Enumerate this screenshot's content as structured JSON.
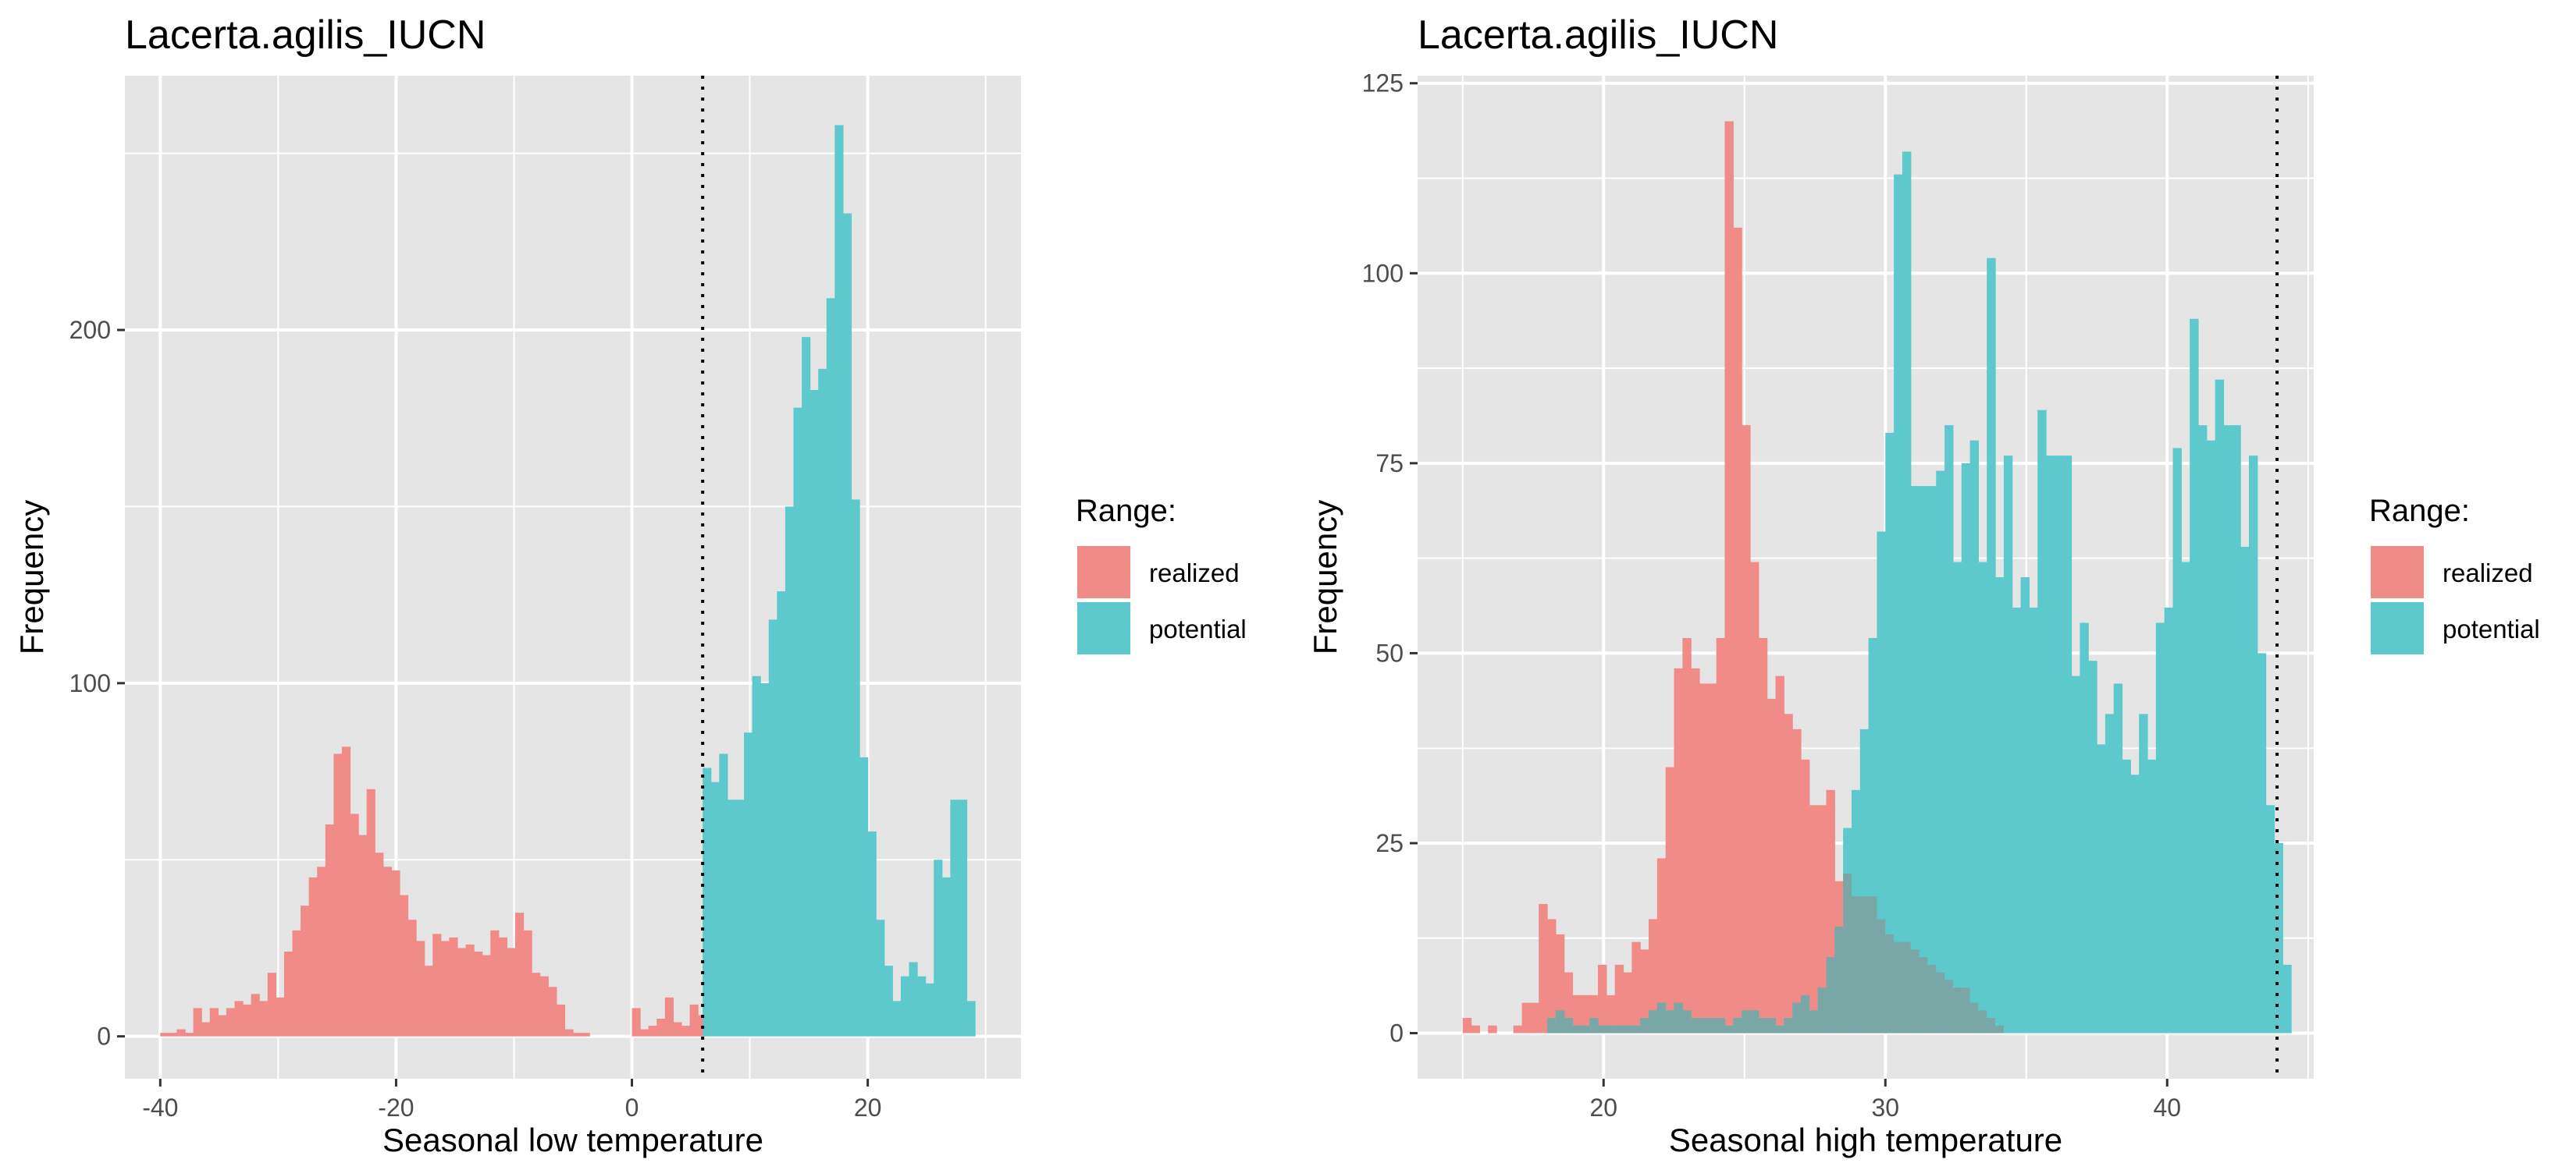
{
  "colors": {
    "panel_background": "#e5e5e5",
    "grid": "#ffffff",
    "realized": "#f08b87",
    "potential": "#5ec9cc",
    "overlap": "#7aa7a6",
    "threshold_line": "#000000"
  },
  "legend": {
    "title": "Range:",
    "items": [
      {
        "label": "realized",
        "color": "#f08b87"
      },
      {
        "label": "potential",
        "color": "#5ec9cc"
      }
    ]
  },
  "chart_data": [
    {
      "type": "histogram",
      "title": "Lacerta.agilis_IUCN",
      "xlabel": "Seasonal low temperature",
      "ylabel": "Frequency",
      "xlim": [
        -43,
        33
      ],
      "ylim": [
        -12,
        272
      ],
      "x_ticks": [
        -40,
        -20,
        0,
        20
      ],
      "x_tick_labels": [
        "-40",
        "-20",
        "0",
        "20"
      ],
      "y_ticks": [
        0,
        100,
        200
      ],
      "y_tick_labels": [
        "0",
        "100",
        "200"
      ],
      "grid": true,
      "legend_position": "right",
      "threshold_line": {
        "x": 6,
        "style": "dotted"
      },
      "bin_width": 0.7,
      "series": [
        {
          "name": "realized",
          "bins": [
            [
              -40,
              1
            ],
            [
              -39.3,
              1
            ],
            [
              -38.6,
              2
            ],
            [
              -37.9,
              1
            ],
            [
              -37.2,
              8
            ],
            [
              -36.5,
              4
            ],
            [
              -35.8,
              8
            ],
            [
              -35.1,
              6
            ],
            [
              -34.4,
              8
            ],
            [
              -33.7,
              10
            ],
            [
              -33.0,
              9
            ],
            [
              -32.3,
              12
            ],
            [
              -31.6,
              10
            ],
            [
              -30.9,
              18
            ],
            [
              -30.2,
              11
            ],
            [
              -29.5,
              24
            ],
            [
              -28.8,
              30
            ],
            [
              -28.1,
              37
            ],
            [
              -27.4,
              45
            ],
            [
              -26.7,
              48
            ],
            [
              -26.0,
              60
            ],
            [
              -25.3,
              80
            ],
            [
              -24.6,
              82
            ],
            [
              -23.9,
              63
            ],
            [
              -23.2,
              57
            ],
            [
              -22.5,
              70
            ],
            [
              -21.8,
              52
            ],
            [
              -21.1,
              48
            ],
            [
              -20.4,
              47
            ],
            [
              -19.7,
              40
            ],
            [
              -19.0,
              33
            ],
            [
              -18.3,
              27
            ],
            [
              -17.6,
              20
            ],
            [
              -16.9,
              29
            ],
            [
              -16.2,
              27
            ],
            [
              -15.5,
              28
            ],
            [
              -14.8,
              25
            ],
            [
              -14.1,
              26
            ],
            [
              -13.4,
              24
            ],
            [
              -12.7,
              23
            ],
            [
              -12.0,
              30
            ],
            [
              -11.3,
              28
            ],
            [
              -10.6,
              25
            ],
            [
              -9.9,
              35
            ],
            [
              -9.2,
              30
            ],
            [
              -8.5,
              18
            ],
            [
              -7.8,
              17
            ],
            [
              -7.1,
              14
            ],
            [
              -6.4,
              9
            ],
            [
              -5.7,
              2
            ],
            [
              -5.0,
              1
            ],
            [
              -4.3,
              1
            ],
            [
              0,
              8
            ],
            [
              0.7,
              2
            ],
            [
              1.4,
              3
            ],
            [
              2.1,
              5
            ],
            [
              2.8,
              11
            ],
            [
              3.5,
              4
            ],
            [
              4.2,
              3
            ],
            [
              4.9,
              9
            ],
            [
              5.6,
              6
            ]
          ]
        },
        {
          "name": "potential",
          "bins": [
            [
              6.0,
              76
            ],
            [
              6.7,
              72
            ],
            [
              7.4,
              80
            ],
            [
              8.1,
              67
            ],
            [
              8.8,
              67
            ],
            [
              9.5,
              86
            ],
            [
              10.2,
              102
            ],
            [
              10.9,
              100
            ],
            [
              11.6,
              118
            ],
            [
              12.3,
              126
            ],
            [
              13.0,
              150
            ],
            [
              13.7,
              178
            ],
            [
              14.4,
              198
            ],
            [
              15.1,
              183
            ],
            [
              15.8,
              189
            ],
            [
              16.5,
              209
            ],
            [
              17.2,
              258
            ],
            [
              17.9,
              233
            ],
            [
              18.6,
              152
            ],
            [
              19.3,
              79
            ],
            [
              20.0,
              58
            ],
            [
              20.7,
              33
            ],
            [
              21.4,
              20
            ],
            [
              22.1,
              10
            ],
            [
              22.8,
              17
            ],
            [
              23.5,
              21
            ],
            [
              24.2,
              17
            ],
            [
              24.9,
              15
            ],
            [
              25.6,
              50
            ],
            [
              26.3,
              45
            ],
            [
              27.0,
              67
            ],
            [
              27.7,
              67
            ],
            [
              28.4,
              10
            ]
          ]
        }
      ]
    },
    {
      "type": "histogram",
      "title": "Lacerta.agilis_IUCN",
      "xlabel": "Seasonal high temperature",
      "ylabel": "Frequency",
      "xlim": [
        13.4,
        45.2
      ],
      "ylim": [
        -6,
        126
      ],
      "x_ticks": [
        20,
        30,
        40
      ],
      "x_tick_labels": [
        "20",
        "30",
        "40"
      ],
      "y_ticks": [
        0,
        25,
        50,
        75,
        100,
        125
      ],
      "y_tick_labels": [
        "0",
        "25",
        "50",
        "75",
        "100",
        "125"
      ],
      "grid": true,
      "legend_position": "right",
      "threshold_line": {
        "x": 43.9,
        "style": "dotted"
      },
      "bin_width": 0.3,
      "series": [
        {
          "name": "realized",
          "bins": [
            [
              15.0,
              2
            ],
            [
              15.3,
              1
            ],
            [
              15.9,
              1
            ],
            [
              16.8,
              1
            ],
            [
              17.1,
              4
            ],
            [
              17.4,
              4
            ],
            [
              17.7,
              17
            ],
            [
              18.0,
              15
            ],
            [
              18.3,
              13
            ],
            [
              18.6,
              8
            ],
            [
              18.9,
              5
            ],
            [
              19.2,
              5
            ],
            [
              19.5,
              5
            ],
            [
              19.8,
              9
            ],
            [
              20.1,
              5
            ],
            [
              20.4,
              9
            ],
            [
              20.7,
              8
            ],
            [
              21.0,
              12
            ],
            [
              21.3,
              11
            ],
            [
              21.6,
              15
            ],
            [
              21.9,
              23
            ],
            [
              22.2,
              35
            ],
            [
              22.5,
              48
            ],
            [
              22.8,
              52
            ],
            [
              23.1,
              48
            ],
            [
              23.4,
              46
            ],
            [
              23.7,
              46
            ],
            [
              24.0,
              52
            ],
            [
              24.3,
              120
            ],
            [
              24.6,
              106
            ],
            [
              24.9,
              80
            ],
            [
              25.2,
              62
            ],
            [
              25.5,
              52
            ],
            [
              25.8,
              44
            ],
            [
              26.1,
              47
            ],
            [
              26.4,
              42
            ],
            [
              26.7,
              40
            ],
            [
              27.0,
              36
            ],
            [
              27.3,
              30
            ],
            [
              27.6,
              30
            ],
            [
              27.9,
              32
            ],
            [
              28.2,
              20
            ],
            [
              28.5,
              21
            ],
            [
              28.8,
              18
            ],
            [
              29.1,
              18
            ],
            [
              29.4,
              18
            ],
            [
              29.7,
              15
            ],
            [
              30.0,
              13
            ],
            [
              30.3,
              12
            ],
            [
              30.6,
              12
            ],
            [
              30.9,
              11
            ],
            [
              31.2,
              10
            ],
            [
              31.5,
              9
            ],
            [
              31.8,
              8
            ],
            [
              32.1,
              7
            ],
            [
              32.4,
              6
            ],
            [
              32.7,
              6
            ],
            [
              33.0,
              4
            ],
            [
              33.3,
              3
            ],
            [
              33.6,
              2
            ],
            [
              33.9,
              1
            ]
          ]
        },
        {
          "name": "potential",
          "bins": [
            [
              18.0,
              2
            ],
            [
              18.3,
              3
            ],
            [
              18.6,
              2
            ],
            [
              18.9,
              1
            ],
            [
              19.2,
              1
            ],
            [
              19.5,
              2
            ],
            [
              19.8,
              1
            ],
            [
              20.1,
              1
            ],
            [
              20.4,
              1
            ],
            [
              20.7,
              1
            ],
            [
              21.0,
              1
            ],
            [
              21.3,
              2
            ],
            [
              21.6,
              3
            ],
            [
              21.9,
              4
            ],
            [
              22.2,
              3
            ],
            [
              22.5,
              4
            ],
            [
              22.8,
              3
            ],
            [
              23.1,
              2
            ],
            [
              23.4,
              2
            ],
            [
              23.7,
              2
            ],
            [
              24.0,
              2
            ],
            [
              24.3,
              1
            ],
            [
              24.6,
              2
            ],
            [
              24.9,
              3
            ],
            [
              25.2,
              3
            ],
            [
              25.5,
              2
            ],
            [
              25.8,
              2
            ],
            [
              26.1,
              1
            ],
            [
              26.4,
              2
            ],
            [
              26.7,
              4
            ],
            [
              27.0,
              5
            ],
            [
              27.3,
              3
            ],
            [
              27.6,
              6
            ],
            [
              27.9,
              10
            ],
            [
              28.2,
              14
            ],
            [
              28.5,
              27
            ],
            [
              28.8,
              32
            ],
            [
              29.1,
              40
            ],
            [
              29.4,
              52
            ],
            [
              29.7,
              66
            ],
            [
              30.0,
              79
            ],
            [
              30.3,
              113
            ],
            [
              30.6,
              116
            ],
            [
              30.9,
              72
            ],
            [
              31.2,
              72
            ],
            [
              31.5,
              72
            ],
            [
              31.8,
              74
            ],
            [
              32.1,
              80
            ],
            [
              32.4,
              62
            ],
            [
              32.7,
              75
            ],
            [
              33.0,
              78
            ],
            [
              33.3,
              62
            ],
            [
              33.6,
              102
            ],
            [
              33.9,
              60
            ],
            [
              34.2,
              76
            ],
            [
              34.5,
              56
            ],
            [
              34.8,
              60
            ],
            [
              35.1,
              56
            ],
            [
              35.4,
              82
            ],
            [
              35.7,
              76
            ],
            [
              36.0,
              76
            ],
            [
              36.3,
              76
            ],
            [
              36.6,
              47
            ],
            [
              36.9,
              54
            ],
            [
              37.2,
              49
            ],
            [
              37.5,
              38
            ],
            [
              37.8,
              42
            ],
            [
              38.1,
              46
            ],
            [
              38.4,
              36
            ],
            [
              38.7,
              34
            ],
            [
              39.0,
              42
            ],
            [
              39.3,
              36
            ],
            [
              39.6,
              54
            ],
            [
              39.9,
              56
            ],
            [
              40.2,
              77
            ],
            [
              40.5,
              62
            ],
            [
              40.8,
              94
            ],
            [
              41.1,
              80
            ],
            [
              41.4,
              78
            ],
            [
              41.7,
              86
            ],
            [
              42.0,
              80
            ],
            [
              42.3,
              80
            ],
            [
              42.6,
              64
            ],
            [
              42.9,
              76
            ],
            [
              43.2,
              50
            ],
            [
              43.5,
              30
            ],
            [
              43.8,
              25
            ],
            [
              44.1,
              9
            ]
          ]
        }
      ]
    }
  ]
}
